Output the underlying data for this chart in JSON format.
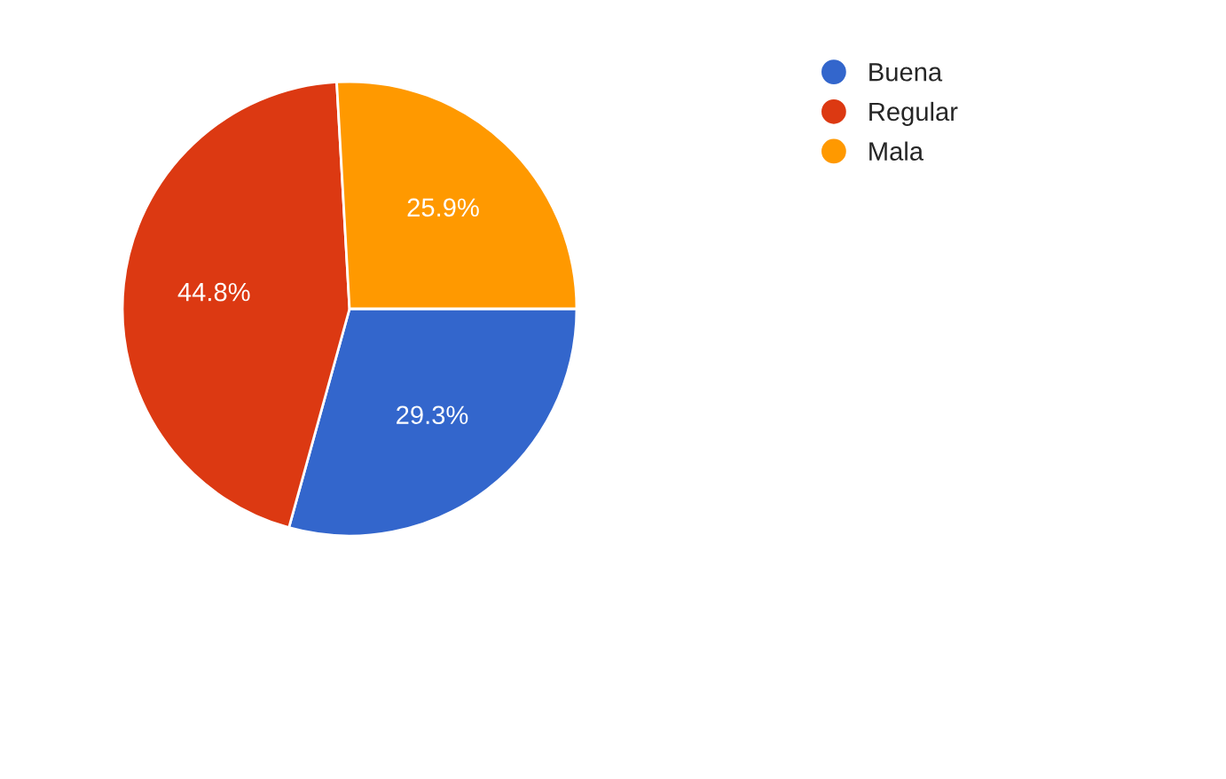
{
  "chart_data": {
    "type": "pie",
    "categories": [
      "Buena",
      "Regular",
      "Mala"
    ],
    "values": [
      29.3,
      44.8,
      25.9
    ],
    "colors": [
      "#3366cc",
      "#dc3912",
      "#ff9900"
    ],
    "value_labels": [
      "29.3%",
      "44.8%",
      "25.9%"
    ],
    "legend": "top right"
  }
}
